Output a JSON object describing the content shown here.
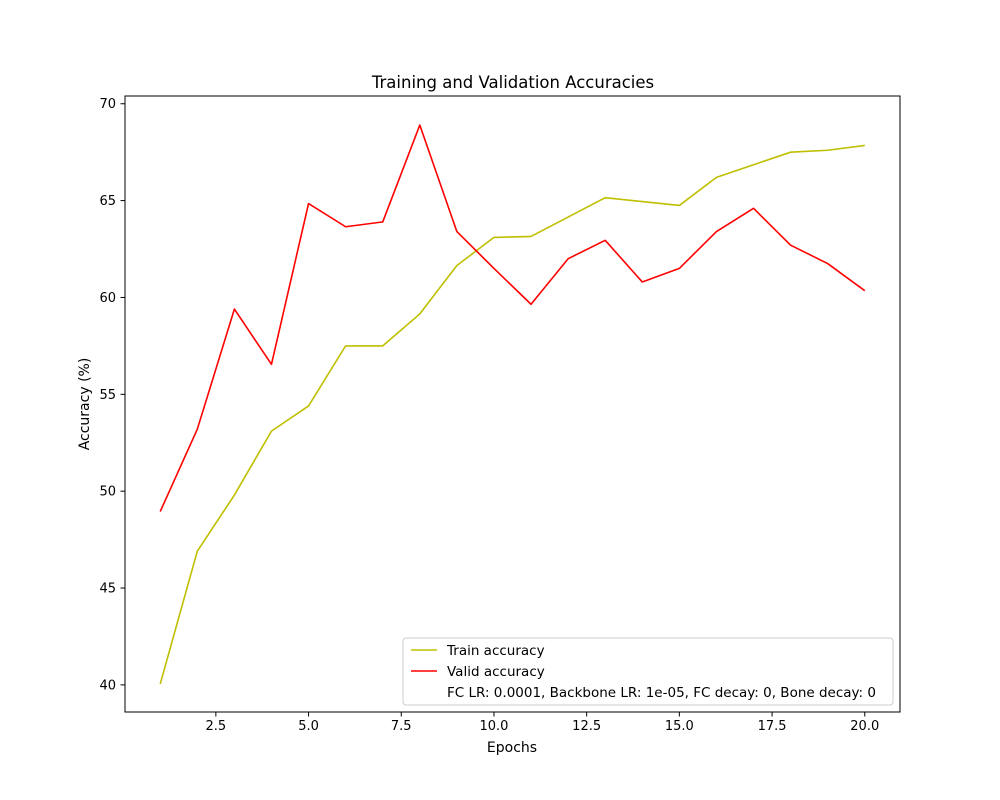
{
  "chart_data": {
    "type": "line",
    "title": "Training and Validation Accuracies",
    "xlabel": "Epochs",
    "ylabel": "Accuracy (%)",
    "xlim": [
      0.05,
      20.95
    ],
    "ylim": [
      38.6,
      70.4
    ],
    "xticks": [
      2.5,
      5.0,
      7.5,
      10.0,
      12.5,
      15.0,
      17.5,
      20.0
    ],
    "xtick_labels": [
      "2.5",
      "5.0",
      "7.5",
      "10.0",
      "12.5",
      "15.0",
      "17.5",
      "20.0"
    ],
    "yticks": [
      40,
      45,
      50,
      55,
      60,
      65,
      70
    ],
    "ytick_labels": [
      "40",
      "45",
      "50",
      "55",
      "60",
      "65",
      "70"
    ],
    "grid": false,
    "legend_position": "bottom-right",
    "x": [
      1,
      2,
      3,
      4,
      5,
      6,
      7,
      8,
      9,
      10,
      11,
      12,
      13,
      14,
      15,
      16,
      17,
      18,
      19,
      20
    ],
    "series": [
      {
        "name": "Train accuracy",
        "color": "#bfbf00",
        "values": [
          40.05,
          46.9,
          49.8,
          53.1,
          54.4,
          57.5,
          57.5,
          59.15,
          61.65,
          63.1,
          63.15,
          64.15,
          65.15,
          64.95,
          64.75,
          66.2,
          66.85,
          67.5,
          67.6,
          67.85
        ]
      },
      {
        "name": "Valid accuracy",
        "color": "#ff0000",
        "values": [
          48.95,
          53.2,
          59.4,
          56.55,
          64.85,
          63.65,
          63.9,
          68.9,
          63.4,
          61.5,
          59.65,
          62.0,
          62.95,
          60.8,
          61.5,
          63.4,
          64.6,
          62.7,
          61.75,
          60.35
        ]
      }
    ],
    "legend_note": "FC LR: 0.0001, Backbone LR: 1e-05, FC decay: 0, Bone decay: 0"
  }
}
